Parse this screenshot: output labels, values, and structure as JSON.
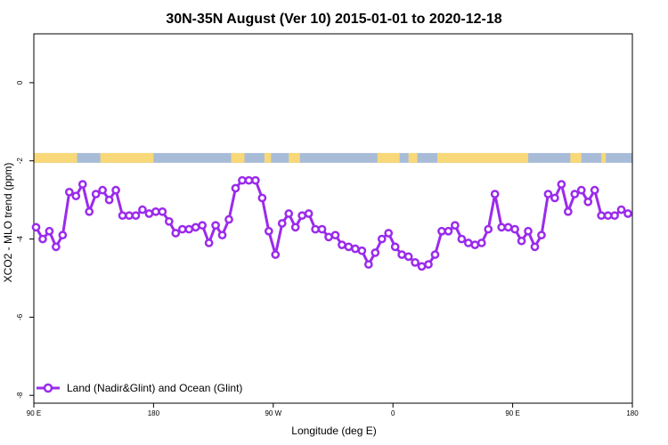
{
  "chart_data": {
    "type": "line",
    "title": "30N-35N August (Ver 10)   2015-01-01 to 2020-12-18",
    "xlabel": "Longitude (deg E)",
    "ylabel": "XCO2 - MLO trend (ppm)",
    "xlim": [
      -90,
      180
    ],
    "ylim": [
      -8.2,
      1.25
    ],
    "x_ticks": [
      {
        "value": -90,
        "label": "90 E"
      },
      {
        "value": -36,
        "label": "180"
      },
      {
        "value": 18,
        "label": "90 W"
      },
      {
        "value": 72,
        "label": "0"
      },
      {
        "value": 126,
        "label": "90 E"
      },
      {
        "value": 180,
        "label": "180"
      }
    ],
    "y_ticks": [
      {
        "value": 0,
        "label": "0"
      },
      {
        "value": -2,
        "label": "-2"
      },
      {
        "value": -4,
        "label": "-4"
      },
      {
        "value": -6,
        "label": "-6"
      },
      {
        "value": -8,
        "label": "-8"
      }
    ],
    "land_ocean_strip": {
      "y_range": [
        -2.05,
        -1.8
      ],
      "ocean_color": "#a8bcd8",
      "land_color": "#f8d878",
      "land_segments": [
        [
          -90,
          -70.5
        ],
        [
          -60,
          -36
        ],
        [
          -1,
          5
        ],
        [
          14,
          17
        ],
        [
          25,
          30
        ],
        [
          65,
          75
        ],
        [
          79,
          83
        ],
        [
          92,
          133
        ],
        [
          152,
          157
        ],
        [
          166,
          168
        ]
      ]
    },
    "series": [
      {
        "name": "Land (Nadir&Glint) and Ocean (Glint)",
        "color": "#9b2bec",
        "x": [
          -89,
          -86,
          -83,
          -80,
          -77,
          -74,
          -71,
          -68,
          -65,
          -62,
          -59,
          -56,
          -53,
          -50,
          -47,
          -44,
          -41,
          -38,
          -35,
          -32,
          -29,
          -26,
          -23,
          -20,
          -17,
          -14,
          -11,
          -8,
          -5,
          -2,
          1,
          4,
          7,
          10,
          13,
          16,
          19,
          22,
          25,
          28,
          31,
          34,
          37,
          40,
          43,
          46,
          49,
          52,
          55,
          58,
          61,
          64,
          67,
          70,
          73,
          76,
          79,
          82,
          85,
          88,
          91,
          94,
          97,
          100,
          103,
          106,
          109,
          112,
          115,
          118,
          121,
          124,
          127,
          130,
          133,
          136,
          139,
          142,
          145,
          148,
          151,
          154,
          157,
          160,
          163,
          166,
          169,
          172,
          175,
          178
        ],
        "values": [
          -3.7,
          -4.0,
          -3.8,
          -4.2,
          -3.9,
          -2.8,
          -2.9,
          -2.6,
          -3.3,
          -2.85,
          -2.75,
          -3.0,
          -2.75,
          -3.4,
          -3.4,
          -3.4,
          -3.25,
          -3.35,
          -3.3,
          -3.3,
          -3.55,
          -3.85,
          -3.75,
          -3.75,
          -3.7,
          -3.65,
          -4.1,
          -3.65,
          -3.9,
          -3.5,
          -2.7,
          -2.5,
          -2.5,
          -2.5,
          -2.95,
          -3.8,
          -4.4,
          -3.6,
          -3.35,
          -3.7,
          -3.4,
          -3.35,
          -3.75,
          -3.75,
          -3.95,
          -3.9,
          -4.15,
          -4.2,
          -4.25,
          -4.3,
          -4.65,
          -4.35,
          -4.0,
          -3.85,
          -4.2,
          -4.4,
          -4.45,
          -4.6,
          -4.7,
          -4.65,
          -4.4,
          -3.8,
          -3.8,
          -3.65,
          -4.0,
          -4.1,
          -4.15,
          -4.1,
          -3.75,
          -2.85,
          -3.7,
          -3.7,
          -3.75,
          -4.05,
          -3.8,
          -4.2,
          -3.9,
          -2.85,
          -2.95,
          -2.6,
          -3.3,
          -2.85,
          -2.75,
          -3.05,
          -2.75,
          -3.4,
          -3.4,
          -3.4,
          -3.25,
          -3.35
        ]
      }
    ],
    "legend": {
      "position": "bottom-left",
      "entries": [
        "Land (Nadir&Glint) and Ocean (Glint)"
      ]
    },
    "grid": false
  }
}
